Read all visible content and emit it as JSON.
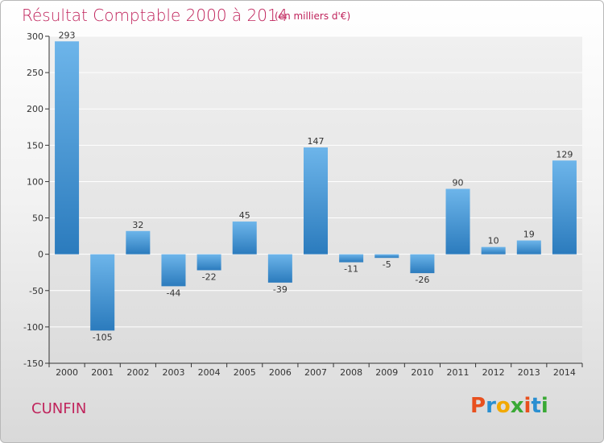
{
  "header": {
    "title": "Résultat Comptable 2000 à 2014",
    "subtitle": "(en milliers d'€)"
  },
  "footer": {
    "commune": "CUNFIN",
    "logo_letters": [
      {
        "ch": "P",
        "color": "#e8501e"
      },
      {
        "ch": "r",
        "color": "#2a8fd1"
      },
      {
        "ch": "o",
        "color": "#f2a900"
      },
      {
        "ch": "x",
        "color": "#3aa935"
      },
      {
        "ch": "i",
        "color": "#e8501e"
      },
      {
        "ch": "t",
        "color": "#2a8fd1"
      },
      {
        "ch": "i",
        "color": "#3aa935"
      }
    ]
  },
  "chart_data": {
    "type": "bar",
    "title": "Résultat Comptable 2000 à 2014",
    "subtitle": "(en milliers d'€)",
    "categories": [
      "2000",
      "2001",
      "2002",
      "2003",
      "2004",
      "2005",
      "2006",
      "2007",
      "2008",
      "2009",
      "2010",
      "2011",
      "2012",
      "2013",
      "2014"
    ],
    "values": [
      293,
      -105,
      32,
      -44,
      -22,
      45,
      -39,
      147,
      -11,
      -5,
      -26,
      90,
      10,
      19,
      129
    ],
    "ylim": [
      -150,
      300
    ],
    "yticks": [
      300,
      250,
      200,
      150,
      100,
      50,
      0,
      -50,
      -100,
      -150
    ],
    "grid": true,
    "xlabel": "",
    "ylabel": "",
    "colors": {
      "bar_light": "#6db5ea",
      "bar_dark": "#2b7bbd",
      "grid": "#ffffff",
      "axis": "#333333"
    }
  }
}
